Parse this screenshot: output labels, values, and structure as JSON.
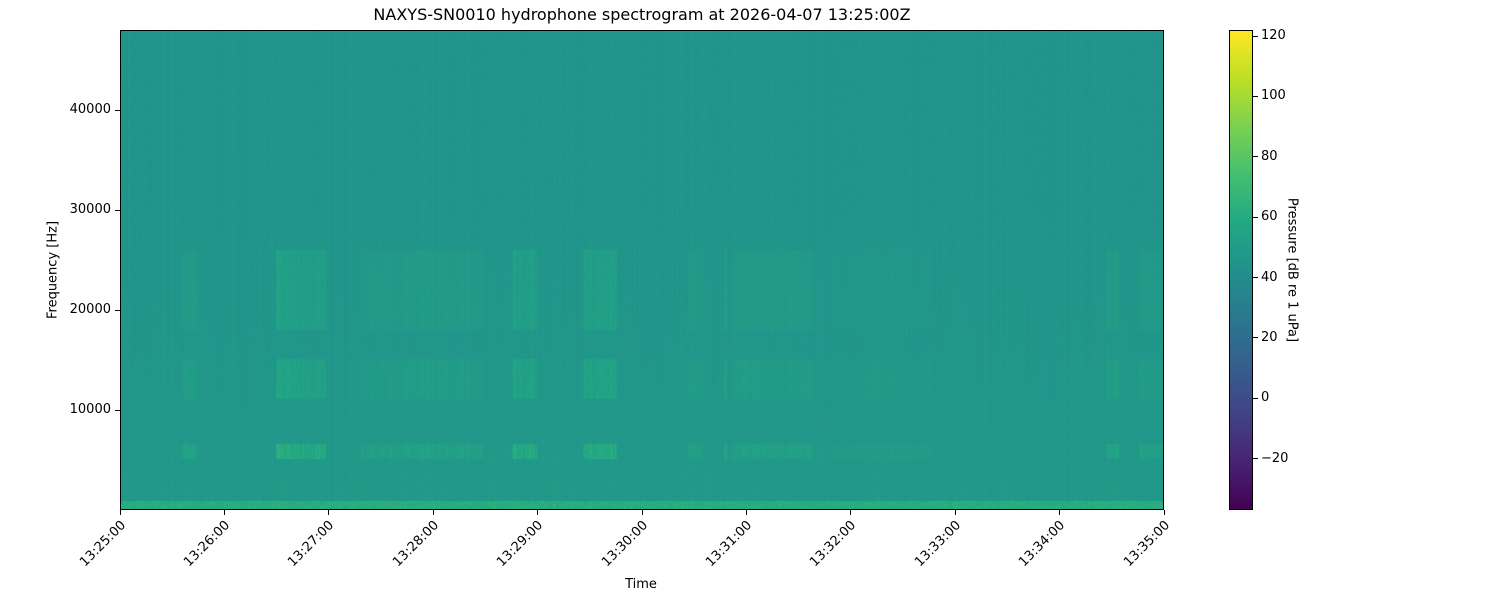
{
  "chart_data": {
    "type": "heatmap",
    "title": "NAXYS-SN0010 hydrophone spectrogram at 2026-04-07 13:25:00Z",
    "xlabel": "Time",
    "ylabel": "Frequency [Hz]",
    "colorbar_label": "Pressure [dB re 1 uPa]",
    "colormap": "viridis",
    "x_range": [
      "13:25:00",
      "13:35:00"
    ],
    "x_ticks": [
      "13:25:00",
      "13:26:00",
      "13:27:00",
      "13:28:00",
      "13:29:00",
      "13:30:00",
      "13:31:00",
      "13:32:00",
      "13:33:00",
      "13:34:00",
      "13:35:00"
    ],
    "y_range": [
      0,
      48000
    ],
    "y_ticks": [
      10000,
      20000,
      30000,
      40000
    ],
    "color_range": [
      -37,
      122
    ],
    "color_ticks": [
      -20,
      0,
      20,
      40,
      60,
      80,
      100,
      120
    ],
    "background_level_db": 45,
    "features": [
      {
        "band_hz": [
          0,
          800
        ],
        "level_db": 60
      },
      {
        "band_hz": [
          5000,
          6500
        ],
        "level_db": 58,
        "intermittent": true
      },
      {
        "band_hz": [
          11000,
          15000
        ],
        "level_db": 53,
        "intermittent": true
      },
      {
        "band_hz": [
          18000,
          26000
        ],
        "level_db": 52,
        "intermittent": true
      }
    ]
  }
}
